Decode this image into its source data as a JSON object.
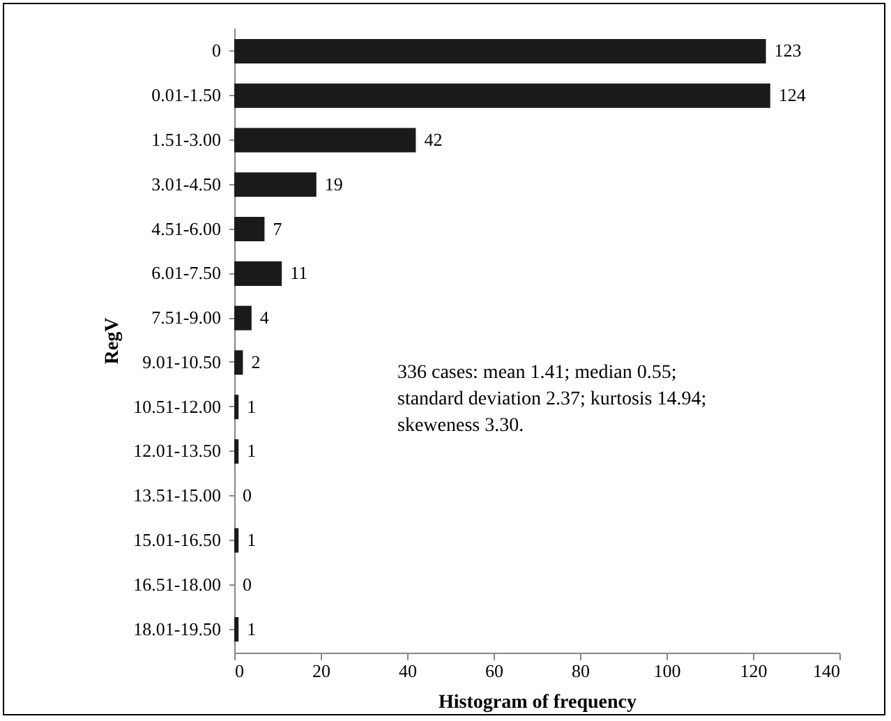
{
  "chart_data": {
    "type": "bar",
    "orientation": "horizontal",
    "xlabel": "Histogram of frequency",
    "ylabel": "RegV",
    "categories": [
      "0",
      "0.01-1.50",
      "1.51-3.00",
      "3.01-4.50",
      "4.51-6.00",
      "6.01-7.50",
      "7.51-9.00",
      "9.01-10.50",
      "10.51-12.00",
      "12.01-13.50",
      "13.51-15.00",
      "15.01-16.50",
      "16.51-18.00",
      "18.01-19.50"
    ],
    "values": [
      123,
      124,
      42,
      19,
      7,
      11,
      4,
      2,
      1,
      1,
      0,
      1,
      0,
      1
    ],
    "color": "#1a1a1a",
    "data_labels": true,
    "xlim": [
      0,
      140
    ],
    "xticks": [
      0,
      20,
      40,
      60,
      80,
      100,
      120,
      140
    ],
    "grid": false,
    "annotations": [
      "336 cases: mean 1.41; median 0.55; standard deviation 2.37; kurtosis 14.94; skeweness 3.30."
    ]
  }
}
